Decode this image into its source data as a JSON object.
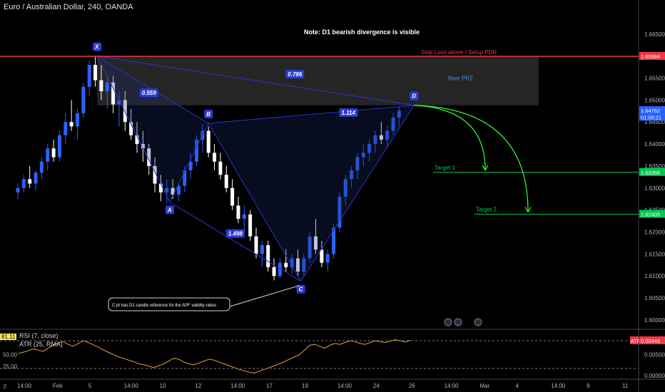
{
  "symbol_title": "Euro / Australian Dollar, 240, OANDA",
  "note": "Note: D1 bearish divergence is visible",
  "chart_data": {
    "type": "candlestick",
    "price_axis": {
      "ticks": [
        "1.66500",
        "1.66000",
        "1.65500",
        "1.65000",
        "1.64500",
        "1.64000",
        "1.63500",
        "1.63000",
        "1.62500",
        "1.62000",
        "1.61500",
        "1.61000",
        "1.60500",
        "1.60000"
      ],
      "range": [
        1.5995,
        1.6695
      ]
    },
    "price_labels": [
      {
        "text": "1.65994",
        "price": 1.65994,
        "color": "#f23645"
      },
      {
        "text": "1.64762",
        "price": 1.64762,
        "color": "#2962ff"
      },
      {
        "text": "01:00:21",
        "price": 1.6461,
        "color": "#2962ff"
      },
      {
        "text": "1.63356",
        "price": 1.63356,
        "color": "#00c853"
      },
      {
        "text": "1.62405",
        "price": 1.62405,
        "color": "#00c853"
      }
    ],
    "time_axis": [
      "14:00",
      "Feb",
      "5",
      "14:00",
      "10",
      "12",
      "14:00",
      "17",
      "19",
      "14:00",
      "24",
      "26",
      "14:00",
      "Mar",
      "4",
      "14:00",
      "9",
      "11"
    ],
    "candles": [
      [
        1.629,
        1.631,
        1.6275,
        1.63
      ],
      [
        1.63,
        1.633,
        1.629,
        1.632
      ],
      [
        1.632,
        1.635,
        1.63,
        1.631
      ],
      [
        1.631,
        1.634,
        1.6295,
        1.6335
      ],
      [
        1.6335,
        1.637,
        1.632,
        1.636
      ],
      [
        1.636,
        1.64,
        1.634,
        1.639
      ],
      [
        1.639,
        1.641,
        1.636,
        1.637
      ],
      [
        1.637,
        1.643,
        1.636,
        1.642
      ],
      [
        1.642,
        1.647,
        1.64,
        1.645
      ],
      [
        1.645,
        1.65,
        1.643,
        1.644
      ],
      [
        1.644,
        1.648,
        1.641,
        1.647
      ],
      [
        1.647,
        1.654,
        1.646,
        1.653
      ],
      [
        1.653,
        1.659,
        1.651,
        1.658
      ],
      [
        1.658,
        1.6599,
        1.653,
        1.6545
      ],
      [
        1.6545,
        1.658,
        1.65,
        1.652
      ],
      [
        1.652,
        1.656,
        1.648,
        1.654
      ],
      [
        1.654,
        1.6555,
        1.647,
        1.649
      ],
      [
        1.649,
        1.652,
        1.644,
        1.65
      ],
      [
        1.65,
        1.652,
        1.643,
        1.645
      ],
      [
        1.645,
        1.648,
        1.641,
        1.642
      ],
      [
        1.642,
        1.645,
        1.638,
        1.64
      ],
      [
        1.64,
        1.643,
        1.636,
        1.639
      ],
      [
        1.639,
        1.64,
        1.633,
        1.635
      ],
      [
        1.635,
        1.637,
        1.629,
        1.631
      ],
      [
        1.631,
        1.633,
        1.627,
        1.629
      ],
      [
        1.629,
        1.632,
        1.6265,
        1.63
      ],
      [
        1.63,
        1.632,
        1.6275,
        1.6285
      ],
      [
        1.6285,
        1.631,
        1.627,
        1.6305
      ],
      [
        1.6305,
        1.635,
        1.629,
        1.634
      ],
      [
        1.634,
        1.638,
        1.632,
        1.636
      ],
      [
        1.636,
        1.642,
        1.635,
        1.641
      ],
      [
        1.641,
        1.6445,
        1.638,
        1.643
      ],
      [
        1.643,
        1.644,
        1.637,
        1.638
      ],
      [
        1.638,
        1.64,
        1.634,
        1.636
      ],
      [
        1.636,
        1.638,
        1.632,
        1.633
      ],
      [
        1.633,
        1.635,
        1.629,
        1.63
      ],
      [
        1.63,
        1.632,
        1.625,
        1.626
      ],
      [
        1.626,
        1.628,
        1.622,
        1.623
      ],
      [
        1.623,
        1.626,
        1.62,
        1.624
      ],
      [
        1.624,
        1.625,
        1.618,
        1.619
      ],
      [
        1.619,
        1.621,
        1.614,
        1.615
      ],
      [
        1.615,
        1.618,
        1.612,
        1.617
      ],
      [
        1.617,
        1.618,
        1.611,
        1.612
      ],
      [
        1.612,
        1.614,
        1.609,
        1.61
      ],
      [
        1.61,
        1.614,
        1.6095,
        1.613
      ],
      [
        1.613,
        1.616,
        1.611,
        1.612
      ],
      [
        1.612,
        1.615,
        1.6105,
        1.614
      ],
      [
        1.614,
        1.616,
        1.61,
        1.611
      ],
      [
        1.611,
        1.615,
        1.61,
        1.614
      ],
      [
        1.614,
        1.62,
        1.613,
        1.619
      ],
      [
        1.619,
        1.623,
        1.615,
        1.616
      ],
      [
        1.616,
        1.618,
        1.612,
        1.613
      ],
      [
        1.613,
        1.616,
        1.611,
        1.615
      ],
      [
        1.615,
        1.622,
        1.614,
        1.621
      ],
      [
        1.621,
        1.629,
        1.62,
        1.628
      ],
      [
        1.628,
        1.633,
        1.626,
        1.632
      ],
      [
        1.632,
        1.635,
        1.63,
        1.634
      ],
      [
        1.634,
        1.638,
        1.632,
        1.637
      ],
      [
        1.637,
        1.64,
        1.635,
        1.638
      ],
      [
        1.638,
        1.641,
        1.636,
        1.64
      ],
      [
        1.64,
        1.643,
        1.638,
        1.642
      ],
      [
        1.642,
        1.645,
        1.64,
        1.641
      ],
      [
        1.641,
        1.644,
        1.639,
        1.643
      ],
      [
        1.643,
        1.647,
        1.642,
        1.646
      ],
      [
        1.646,
        1.6485,
        1.644,
        1.6476
      ]
    ]
  },
  "harmonic": {
    "points": [
      {
        "label": "X",
        "time": 13.3,
        "price": 1.66
      },
      {
        "label": "A",
        "time": 25.5,
        "price": 1.6268
      },
      {
        "label": "B",
        "time": 32,
        "price": 1.6447
      },
      {
        "label": "C",
        "time": 47.5,
        "price": 1.6088
      },
      {
        "label": "D",
        "time": 66.5,
        "price": 1.6488
      }
    ],
    "ratios": [
      {
        "text": "0.559",
        "time": 22,
        "price": 1.6515
      },
      {
        "text": "0.786",
        "time": 46.5,
        "price": 1.6557
      },
      {
        "text": "1.114",
        "time": 55.5,
        "price": 1.647
      },
      {
        "text": "1.498",
        "time": 36.5,
        "price": 1.6195
      }
    ],
    "prz_label": "Bear PRZ",
    "stop_label": "Stop Loss above / Setup PDR",
    "stop_price": 1.65994,
    "targets": [
      {
        "label": "Target 1",
        "price": 1.63356
      },
      {
        "label": "Target 2",
        "price": 1.62405
      }
    ],
    "callout": "C pt has D1 candle reference for the APF validity ratios"
  },
  "indicator": {
    "rsi_label": "RSI (7, close)",
    "atr_label": "ATR (25, RMA)",
    "value_badge": "81.11",
    "left_ticks": [
      "50.00",
      "25.00"
    ],
    "right_ticks": [
      "0.00500",
      "0.00000"
    ],
    "atr_badge": "ATR",
    "atr_value": "0.00446",
    "series": [
      52,
      55,
      58,
      62,
      60,
      57,
      64,
      70,
      75,
      78,
      72,
      68,
      74,
      80,
      76,
      71,
      66,
      60,
      55,
      50,
      45,
      42,
      38,
      35,
      30,
      28,
      25,
      22,
      26,
      30,
      36,
      42,
      40,
      34,
      30,
      28,
      32,
      36,
      40,
      38,
      34,
      30,
      26,
      22,
      18,
      15,
      12,
      10,
      14,
      18,
      22,
      26,
      30,
      35,
      40,
      45,
      50,
      60,
      70,
      72,
      68,
      64,
      70,
      74,
      72,
      76,
      80,
      78,
      74,
      72,
      76,
      80,
      78,
      76,
      79,
      82,
      80,
      77,
      81
    ]
  },
  "colors": {
    "up": "#2962ff",
    "down": "#ffffff",
    "harmonic": "#2a35d0",
    "stop": "#f23645",
    "target": "#00c853",
    "arrow": "#33ff33",
    "indicator": "#e0a13b",
    "prz": "#2b2b2b"
  }
}
